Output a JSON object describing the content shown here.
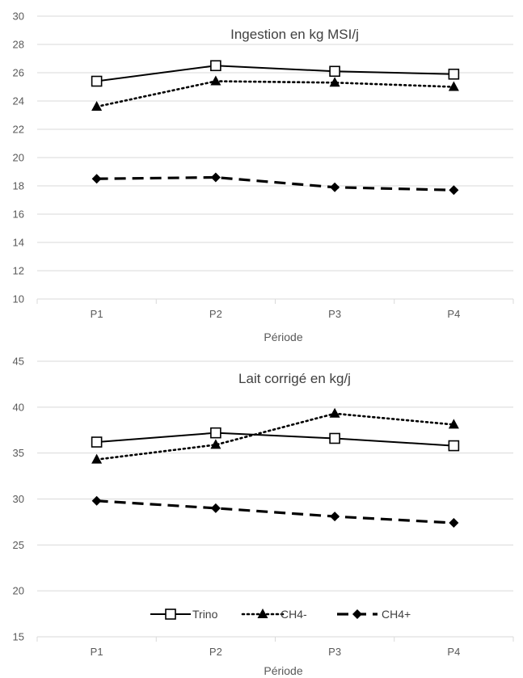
{
  "chart_data": [
    {
      "type": "line",
      "title": "Ingestion en kg MSI/j",
      "xlabel": "Période",
      "ylabel": "",
      "categories": [
        "P1",
        "P2",
        "P3",
        "P4"
      ],
      "ylim": [
        10,
        30
      ],
      "yticks": [
        10,
        12,
        14,
        16,
        18,
        20,
        22,
        24,
        26,
        28,
        30
      ],
      "grid": true,
      "legend": null,
      "series": [
        {
          "name": "Trino",
          "values": [
            25.4,
            26.5,
            26.1,
            25.9
          ],
          "line_style": "solid",
          "marker": "open-square",
          "color": "#000000"
        },
        {
          "name": "CH4-",
          "values": [
            23.6,
            25.4,
            25.3,
            25.0
          ],
          "line_style": "dotted",
          "marker": "filled-triangle",
          "color": "#000000"
        },
        {
          "name": "CH4+",
          "values": [
            18.5,
            18.6,
            17.9,
            17.7
          ],
          "line_style": "dashed",
          "marker": "filled-diamond",
          "color": "#000000"
        }
      ]
    },
    {
      "type": "line",
      "title": "Lait corrigé en kg/j",
      "xlabel": "Période",
      "ylabel": "",
      "categories": [
        "P1",
        "P2",
        "P3",
        "P4"
      ],
      "ylim": [
        15,
        45
      ],
      "yticks": [
        15,
        20,
        25,
        30,
        35,
        40,
        45
      ],
      "grid": true,
      "legend": "bottom-center",
      "series": [
        {
          "name": "Trino",
          "values": [
            36.2,
            37.2,
            36.6,
            35.8
          ],
          "line_style": "solid",
          "marker": "open-square",
          "color": "#000000"
        },
        {
          "name": "CH4-",
          "values": [
            34.3,
            35.9,
            39.3,
            38.1
          ],
          "line_style": "dotted",
          "marker": "filled-triangle",
          "color": "#000000"
        },
        {
          "name": "CH4+",
          "values": [
            29.8,
            29.0,
            28.1,
            27.4
          ],
          "line_style": "dashed",
          "marker": "filled-diamond",
          "color": "#000000"
        }
      ]
    }
  ],
  "colors": {
    "gridline": "#d9d9d9",
    "text": "#595959",
    "series": "#000000"
  }
}
